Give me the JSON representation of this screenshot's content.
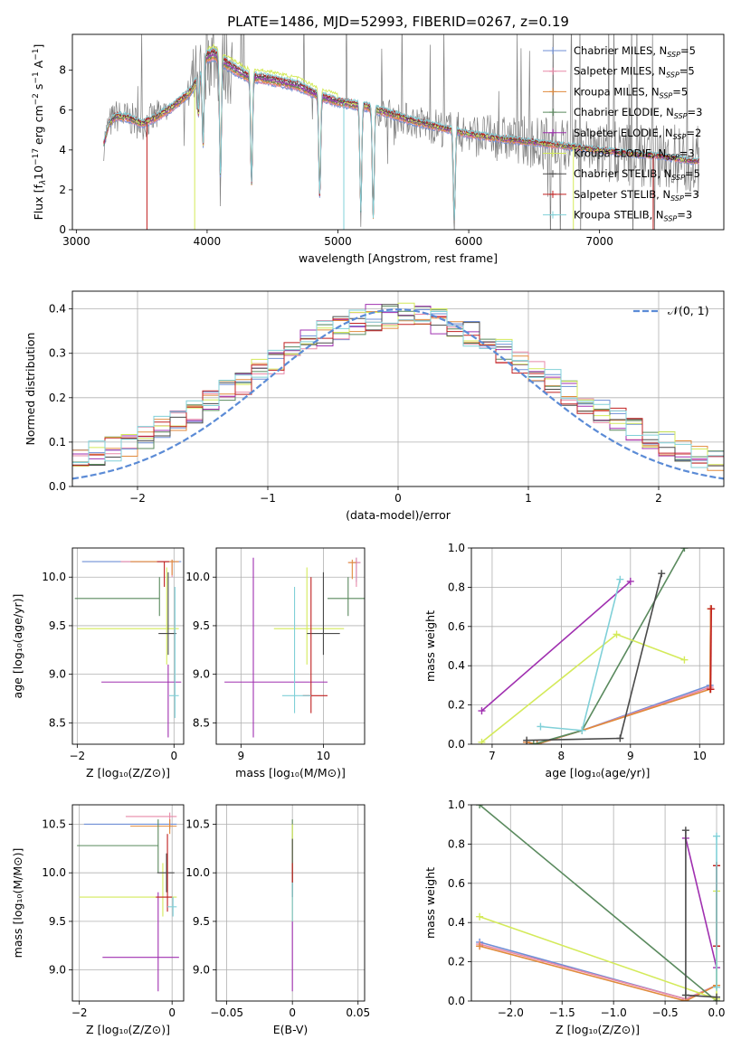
{
  "figure_title": "PLATE=1486, MJD=52993, FIBERID=0267, z=0.19",
  "colors": {
    "Chabrier MILES": "#6f8fd6",
    "Salpeter MILES": "#e889a8",
    "Kroupa MILES": "#e08a3c",
    "Chabrier ELODIE": "#5a8a5e",
    "Salpeter ELODIE": "#a030b0",
    "Kroupa ELODIE": "#d4ea5a",
    "Chabrier STELIB": "#4a4a4a",
    "Salpeter STELIB": "#c02020",
    "Kroupa STELIB": "#80d0d8",
    "observed": "#808080",
    "gaussian": "#5b8bd6"
  },
  "chart_data": [
    {
      "id": "spectrum",
      "type": "line",
      "xlabel": "wavelength [Angstrom, rest frame]",
      "ylabel_parts": [
        "Flux [f",
        "λ",
        "10",
        "−17",
        " erg cm",
        "−2",
        " s",
        "−1",
        " A",
        "−1",
        "]"
      ],
      "xlim": [
        2970,
        7950
      ],
      "ylim": [
        0,
        9.8
      ],
      "xticks": [
        3000,
        4000,
        5000,
        6000,
        7000
      ],
      "yticks": [
        0,
        2,
        4,
        6,
        8
      ],
      "grid": false,
      "legend_position": "top-right",
      "legend": [
        {
          "name": "Chabrier MILES",
          "nssp": "5"
        },
        {
          "name": "Salpeter MILES",
          "nssp": "5"
        },
        {
          "name": "Kroupa MILES",
          "nssp": "5"
        },
        {
          "name": "Chabrier ELODIE",
          "nssp": "3"
        },
        {
          "name": "Salpeter ELODIE",
          "nssp": "2"
        },
        {
          "name": "Kroupa ELODIE",
          "nssp": "3"
        },
        {
          "name": "Chabrier STELIB",
          "nssp": "5"
        },
        {
          "name": "Salpeter STELIB",
          "nssp": "3"
        },
        {
          "name": "Kroupa STELIB",
          "nssp": "3"
        }
      ],
      "continuum": [
        [
          3210,
          4.3
        ],
        [
          3250,
          5.3
        ],
        [
          3300,
          5.7
        ],
        [
          3400,
          5.6
        ],
        [
          3500,
          5.3
        ],
        [
          3600,
          5.6
        ],
        [
          3700,
          6.0
        ],
        [
          3800,
          6.5
        ],
        [
          3870,
          6.9
        ],
        [
          3930,
          7.6
        ],
        [
          3980,
          8.6
        ],
        [
          4050,
          8.8
        ],
        [
          4150,
          8.3
        ],
        [
          4300,
          7.7
        ],
        [
          4500,
          7.5
        ],
        [
          4700,
          7.2
        ],
        [
          4860,
          6.7
        ],
        [
          5000,
          6.4
        ],
        [
          5200,
          6.2
        ],
        [
          5400,
          5.8
        ],
        [
          5600,
          5.4
        ],
        [
          5800,
          5.1
        ],
        [
          6000,
          4.8
        ],
        [
          6200,
          4.6
        ],
        [
          6400,
          4.45
        ],
        [
          6600,
          4.3
        ],
        [
          6800,
          4.15
        ],
        [
          7000,
          4.0
        ],
        [
          7200,
          3.85
        ],
        [
          7450,
          3.7
        ],
        [
          7600,
          3.55
        ],
        [
          7700,
          3.45
        ]
      ]
    },
    {
      "id": "residuals",
      "type": "bar",
      "xlabel": "(data-model)/error",
      "ylabel": "Normed distribution",
      "xlim": [
        -2.5,
        2.5
      ],
      "ylim": [
        0,
        0.44
      ],
      "xticks": [
        -2,
        -1,
        0,
        1,
        2
      ],
      "yticks": [
        0.0,
        0.1,
        0.2,
        0.3,
        0.4
      ],
      "grid": true,
      "legend_position": "top-right",
      "legend_label": "𝒩(0, 1)",
      "bins": 40
    },
    {
      "id": "age-vs-Z",
      "type": "scatter",
      "xlabel": "Z [log₁₀(Z/Z⊙)]",
      "ylabel": "age  [log₁₀(age/yr)]",
      "xlim": [
        -2.1,
        0.2
      ],
      "ylim": [
        8.28,
        10.3
      ],
      "xticks": [
        -2,
        0
      ],
      "yticks": [
        8.5,
        9.0,
        9.5,
        10.0
      ],
      "grid": true,
      "errorbars": [
        {
          "s": "Chabrier MILES",
          "x": -0.04,
          "y": 10.16,
          "xe": [
            -1.9,
            0.15
          ],
          "ye": [
            10.16,
            10.16
          ]
        },
        {
          "s": "Salpeter MILES",
          "x": -0.04,
          "y": 10.16,
          "xe": [
            -1.1,
            0.1
          ],
          "ye": [
            10.0,
            10.18
          ]
        },
        {
          "s": "Kroupa MILES",
          "x": -0.04,
          "y": 10.16,
          "xe": [
            -0.9,
            0.1
          ],
          "ye": [
            10.02,
            10.18
          ]
        },
        {
          "s": "Chabrier ELODIE",
          "x": -0.3,
          "y": 9.78,
          "xe": [
            -2.05,
            -0.3
          ],
          "ye": [
            9.6,
            10.0
          ]
        },
        {
          "s": "Salpeter ELODIE",
          "x": -0.12,
          "y": 8.92,
          "xe": [
            -1.5,
            0.15
          ],
          "ye": [
            8.35,
            9.1
          ]
        },
        {
          "s": "Kroupa ELODIE",
          "x": -0.15,
          "y": 9.47,
          "xe": [
            -2.0,
            0.1
          ],
          "ye": [
            9.1,
            10.1
          ]
        },
        {
          "s": "Chabrier STELIB",
          "x": -0.12,
          "y": 9.42,
          "xe": [
            -0.32,
            0.05
          ],
          "ye": [
            9.2,
            10.05
          ]
        },
        {
          "s": "Salpeter STELIB",
          "x": -0.2,
          "y": 10.16,
          "xe": [
            -0.35,
            -0.1
          ],
          "ye": [
            9.9,
            10.16
          ]
        },
        {
          "s": "Kroupa STELIB",
          "x": 0.02,
          "y": 8.78,
          "xe": [
            -0.1,
            0.1
          ],
          "ye": [
            8.55,
            9.9
          ]
        }
      ]
    },
    {
      "id": "age-vs-mass",
      "type": "scatter",
      "xlabel": "mass [log₁₀(M/M⊙)]",
      "xlim": [
        8.7,
        10.5
      ],
      "ylim": [
        8.28,
        10.3
      ],
      "xticks": [
        9,
        10
      ],
      "yticks": [
        8.5,
        9.0,
        9.5,
        10.0
      ],
      "grid": true,
      "errorbars": [
        {
          "s": "Chabrier MILES",
          "x": 10.4,
          "y": 10.15,
          "xe": [
            10.35,
            10.45
          ],
          "ye": [
            9.95,
            10.2
          ]
        },
        {
          "s": "Salpeter MILES",
          "x": 10.4,
          "y": 10.15,
          "xe": [
            10.3,
            10.45
          ],
          "ye": [
            9.9,
            10.2
          ]
        },
        {
          "s": "Kroupa MILES",
          "x": 10.35,
          "y": 10.15,
          "xe": [
            10.3,
            10.4
          ],
          "ye": [
            9.98,
            10.18
          ]
        },
        {
          "s": "Chabrier ELODIE",
          "x": 10.3,
          "y": 9.78,
          "xe": [
            10.05,
            10.5
          ],
          "ye": [
            9.6,
            10.0
          ]
        },
        {
          "s": "Salpeter ELODIE",
          "x": 9.15,
          "y": 8.92,
          "xe": [
            8.8,
            10.05
          ],
          "ye": [
            8.35,
            10.2
          ]
        },
        {
          "s": "Kroupa ELODIE",
          "x": 9.8,
          "y": 9.47,
          "xe": [
            9.4,
            10.25
          ],
          "ye": [
            9.1,
            10.1
          ]
        },
        {
          "s": "Chabrier STELIB",
          "x": 10.0,
          "y": 9.42,
          "xe": [
            9.8,
            10.2
          ],
          "ye": [
            9.2,
            10.05
          ]
        },
        {
          "s": "Salpeter STELIB",
          "x": 9.85,
          "y": 8.78,
          "xe": [
            9.75,
            10.05
          ],
          "ye": [
            8.6,
            10.0
          ]
        },
        {
          "s": "Kroupa STELIB",
          "x": 9.65,
          "y": 8.78,
          "xe": [
            9.5,
            9.85
          ],
          "ye": [
            8.6,
            9.9
          ]
        }
      ]
    },
    {
      "id": "weight-vs-age",
      "type": "line",
      "xlabel": "age  [log₁₀(age/yr)]",
      "ylabel": "mass weight",
      "xlim": [
        6.7,
        10.35
      ],
      "ylim": [
        0,
        1.0
      ],
      "xticks": [
        7,
        8,
        9,
        10
      ],
      "yticks": [
        0.0,
        0.2,
        0.4,
        0.6,
        0.8,
        1.0
      ],
      "grid": true,
      "series": [
        {
          "s": "Chabrier MILES",
          "x": [
            7.5,
            7.65,
            8.3,
            10.15,
            10.16
          ],
          "y": [
            0.01,
            0.0,
            0.07,
            0.3,
            0.69
          ]
        },
        {
          "s": "Salpeter MILES",
          "x": [
            7.5,
            7.65,
            8.3,
            10.15,
            10.16
          ],
          "y": [
            0.01,
            0.0,
            0.07,
            0.29,
            0.69
          ]
        },
        {
          "s": "Kroupa MILES",
          "x": [
            7.5,
            7.65,
            8.3,
            10.15,
            10.16
          ],
          "y": [
            0.01,
            0.0,
            0.07,
            0.28,
            0.69
          ]
        },
        {
          "s": "Chabrier ELODIE",
          "x": [
            7.6,
            8.3,
            9.78
          ],
          "y": [
            0.0,
            0.07,
            1.0
          ]
        },
        {
          "s": "Salpeter ELODIE",
          "x": [
            6.85,
            9.0
          ],
          "y": [
            0.17,
            0.83
          ]
        },
        {
          "s": "Kroupa ELODIE",
          "x": [
            6.85,
            8.8,
            9.78
          ],
          "y": [
            0.01,
            0.56,
            0.43
          ]
        },
        {
          "s": "Chabrier STELIB",
          "x": [
            7.5,
            8.85,
            9.45
          ],
          "y": [
            0.02,
            0.03,
            0.87
          ]
        },
        {
          "s": "Salpeter STELIB",
          "x": [
            10.16,
            10.17
          ],
          "y": [
            0.28,
            0.69
          ]
        },
        {
          "s": "Kroupa STELIB",
          "x": [
            7.7,
            8.3,
            8.85
          ],
          "y": [
            0.09,
            0.07,
            0.84
          ]
        }
      ]
    },
    {
      "id": "mass-vs-Z",
      "type": "scatter",
      "xlabel": "Z [log₁₀(Z/Z⊙)]",
      "ylabel": "mass [log₁₀(M/M⊙)]",
      "xlim": [
        -2.15,
        0.25
      ],
      "ylim": [
        8.68,
        10.7
      ],
      "xticks": [
        -2,
        0
      ],
      "yticks": [
        9.0,
        9.5,
        10.0,
        10.5
      ],
      "grid": true,
      "errorbars": [
        {
          "s": "Chabrier MILES",
          "x": -0.05,
          "y": 10.5,
          "xe": [
            -1.9,
            0.1
          ],
          "ye": [
            10.45,
            10.55
          ]
        },
        {
          "s": "Salpeter MILES",
          "x": -0.05,
          "y": 10.58,
          "xe": [
            -1.0,
            0.1
          ],
          "ye": [
            10.48,
            10.62
          ]
        },
        {
          "s": "Kroupa MILES",
          "x": -0.05,
          "y": 10.48,
          "xe": [
            -0.9,
            0.1
          ],
          "ye": [
            10.4,
            10.55
          ]
        },
        {
          "s": "Chabrier ELODIE",
          "x": -0.3,
          "y": 10.28,
          "xe": [
            -2.05,
            -0.3
          ],
          "ye": [
            10.0,
            10.55
          ]
        },
        {
          "s": "Salpeter ELODIE",
          "x": -0.3,
          "y": 9.13,
          "xe": [
            -1.5,
            0.15
          ],
          "ye": [
            8.78,
            9.8
          ]
        },
        {
          "s": "Kroupa ELODIE",
          "x": -0.2,
          "y": 9.75,
          "xe": [
            -2.0,
            0.1
          ],
          "ye": [
            9.55,
            10.1
          ]
        },
        {
          "s": "Chabrier STELIB",
          "x": -0.12,
          "y": 10.0,
          "xe": [
            -0.32,
            0.05
          ],
          "ye": [
            9.8,
            10.2
          ]
        },
        {
          "s": "Salpeter STELIB",
          "x": -0.1,
          "y": 9.75,
          "xe": [
            -0.35,
            0.0
          ],
          "ye": [
            9.6,
            10.4
          ]
        },
        {
          "s": "Kroupa STELIB",
          "x": 0.02,
          "y": 9.65,
          "xe": [
            -0.1,
            0.1
          ],
          "ye": [
            9.55,
            9.75
          ]
        }
      ]
    },
    {
      "id": "mass-vs-EBV",
      "type": "scatter",
      "xlabel": "E(B-V)",
      "xlim": [
        -0.058,
        0.055
      ],
      "ylim": [
        8.68,
        10.7
      ],
      "xticks": [
        -0.05,
        0.0,
        0.05
      ],
      "yticks": [
        9.0,
        9.5,
        10.0,
        10.5
      ],
      "grid": true,
      "errorbars": [
        {
          "s": "Chabrier ELODIE",
          "x": 0.0,
          "y": 10.28,
          "xe": [
            0,
            0
          ],
          "ye": [
            9.9,
            10.55
          ]
        },
        {
          "s": "Salpeter ELODIE",
          "x": 0.0,
          "y": 9.13,
          "xe": [
            0,
            0
          ],
          "ye": [
            8.78,
            10.0
          ]
        },
        {
          "s": "Kroupa ELODIE",
          "x": 0.0,
          "y": 9.75,
          "xe": [
            0,
            0
          ],
          "ye": [
            9.5,
            10.5
          ]
        },
        {
          "s": "Chabrier STELIB",
          "x": 0.0,
          "y": 10.0,
          "xe": [
            0,
            0
          ],
          "ye": [
            9.75,
            10.35
          ]
        },
        {
          "s": "Salpeter STELIB",
          "x": 0.0,
          "y": 10.0,
          "xe": [
            0,
            0
          ],
          "ye": [
            9.9,
            10.1
          ]
        },
        {
          "s": "Kroupa STELIB",
          "x": 0.0,
          "y": 9.65,
          "xe": [
            0,
            0
          ],
          "ye": [
            9.5,
            9.9
          ]
        }
      ]
    },
    {
      "id": "weight-vs-Z",
      "type": "line",
      "xlabel": "Z [log₁₀(Z/Z⊙)]",
      "ylabel": "mass weight",
      "xlim": [
        -2.38,
        0.07
      ],
      "ylim": [
        0,
        1.0
      ],
      "xticks": [
        -2.0,
        -1.5,
        -1.0,
        -0.5,
        0.0
      ],
      "yticks": [
        0.0,
        0.2,
        0.4,
        0.6,
        0.8,
        1.0
      ],
      "grid": true,
      "series": [
        {
          "s": "Chabrier MILES",
          "x": [
            -2.3,
            -0.3,
            0.0,
            0.0
          ],
          "y": [
            0.3,
            0.01,
            0.08,
            0.69
          ]
        },
        {
          "s": "Salpeter MILES",
          "x": [
            -2.3,
            -0.3,
            0.0,
            0.0
          ],
          "y": [
            0.29,
            0.01,
            0.08,
            0.69
          ]
        },
        {
          "s": "Kroupa MILES",
          "x": [
            -2.3,
            -0.3,
            0.0,
            0.0
          ],
          "y": [
            0.28,
            0.0,
            0.08,
            0.69
          ]
        },
        {
          "s": "Chabrier ELODIE",
          "x": [
            -2.3,
            0.0
          ],
          "y": [
            1.0,
            0.0
          ]
        },
        {
          "s": "Salpeter ELODIE",
          "x": [
            -0.3,
            0.0
          ],
          "y": [
            0.83,
            0.17
          ]
        },
        {
          "s": "Kroupa ELODIE",
          "x": [
            -2.3,
            0.0,
            0.0
          ],
          "y": [
            0.43,
            0.01,
            0.56
          ]
        },
        {
          "s": "Chabrier STELIB",
          "x": [
            -0.3,
            -0.3,
            0.0
          ],
          "y": [
            0.87,
            0.03,
            0.02
          ]
        },
        {
          "s": "Salpeter STELIB",
          "x": [
            0.0,
            0.0
          ],
          "y": [
            0.28,
            0.69
          ]
        },
        {
          "s": "Kroupa STELIB",
          "x": [
            0.0,
            0.0
          ],
          "y": [
            0.07,
            0.84
          ]
        }
      ]
    }
  ]
}
